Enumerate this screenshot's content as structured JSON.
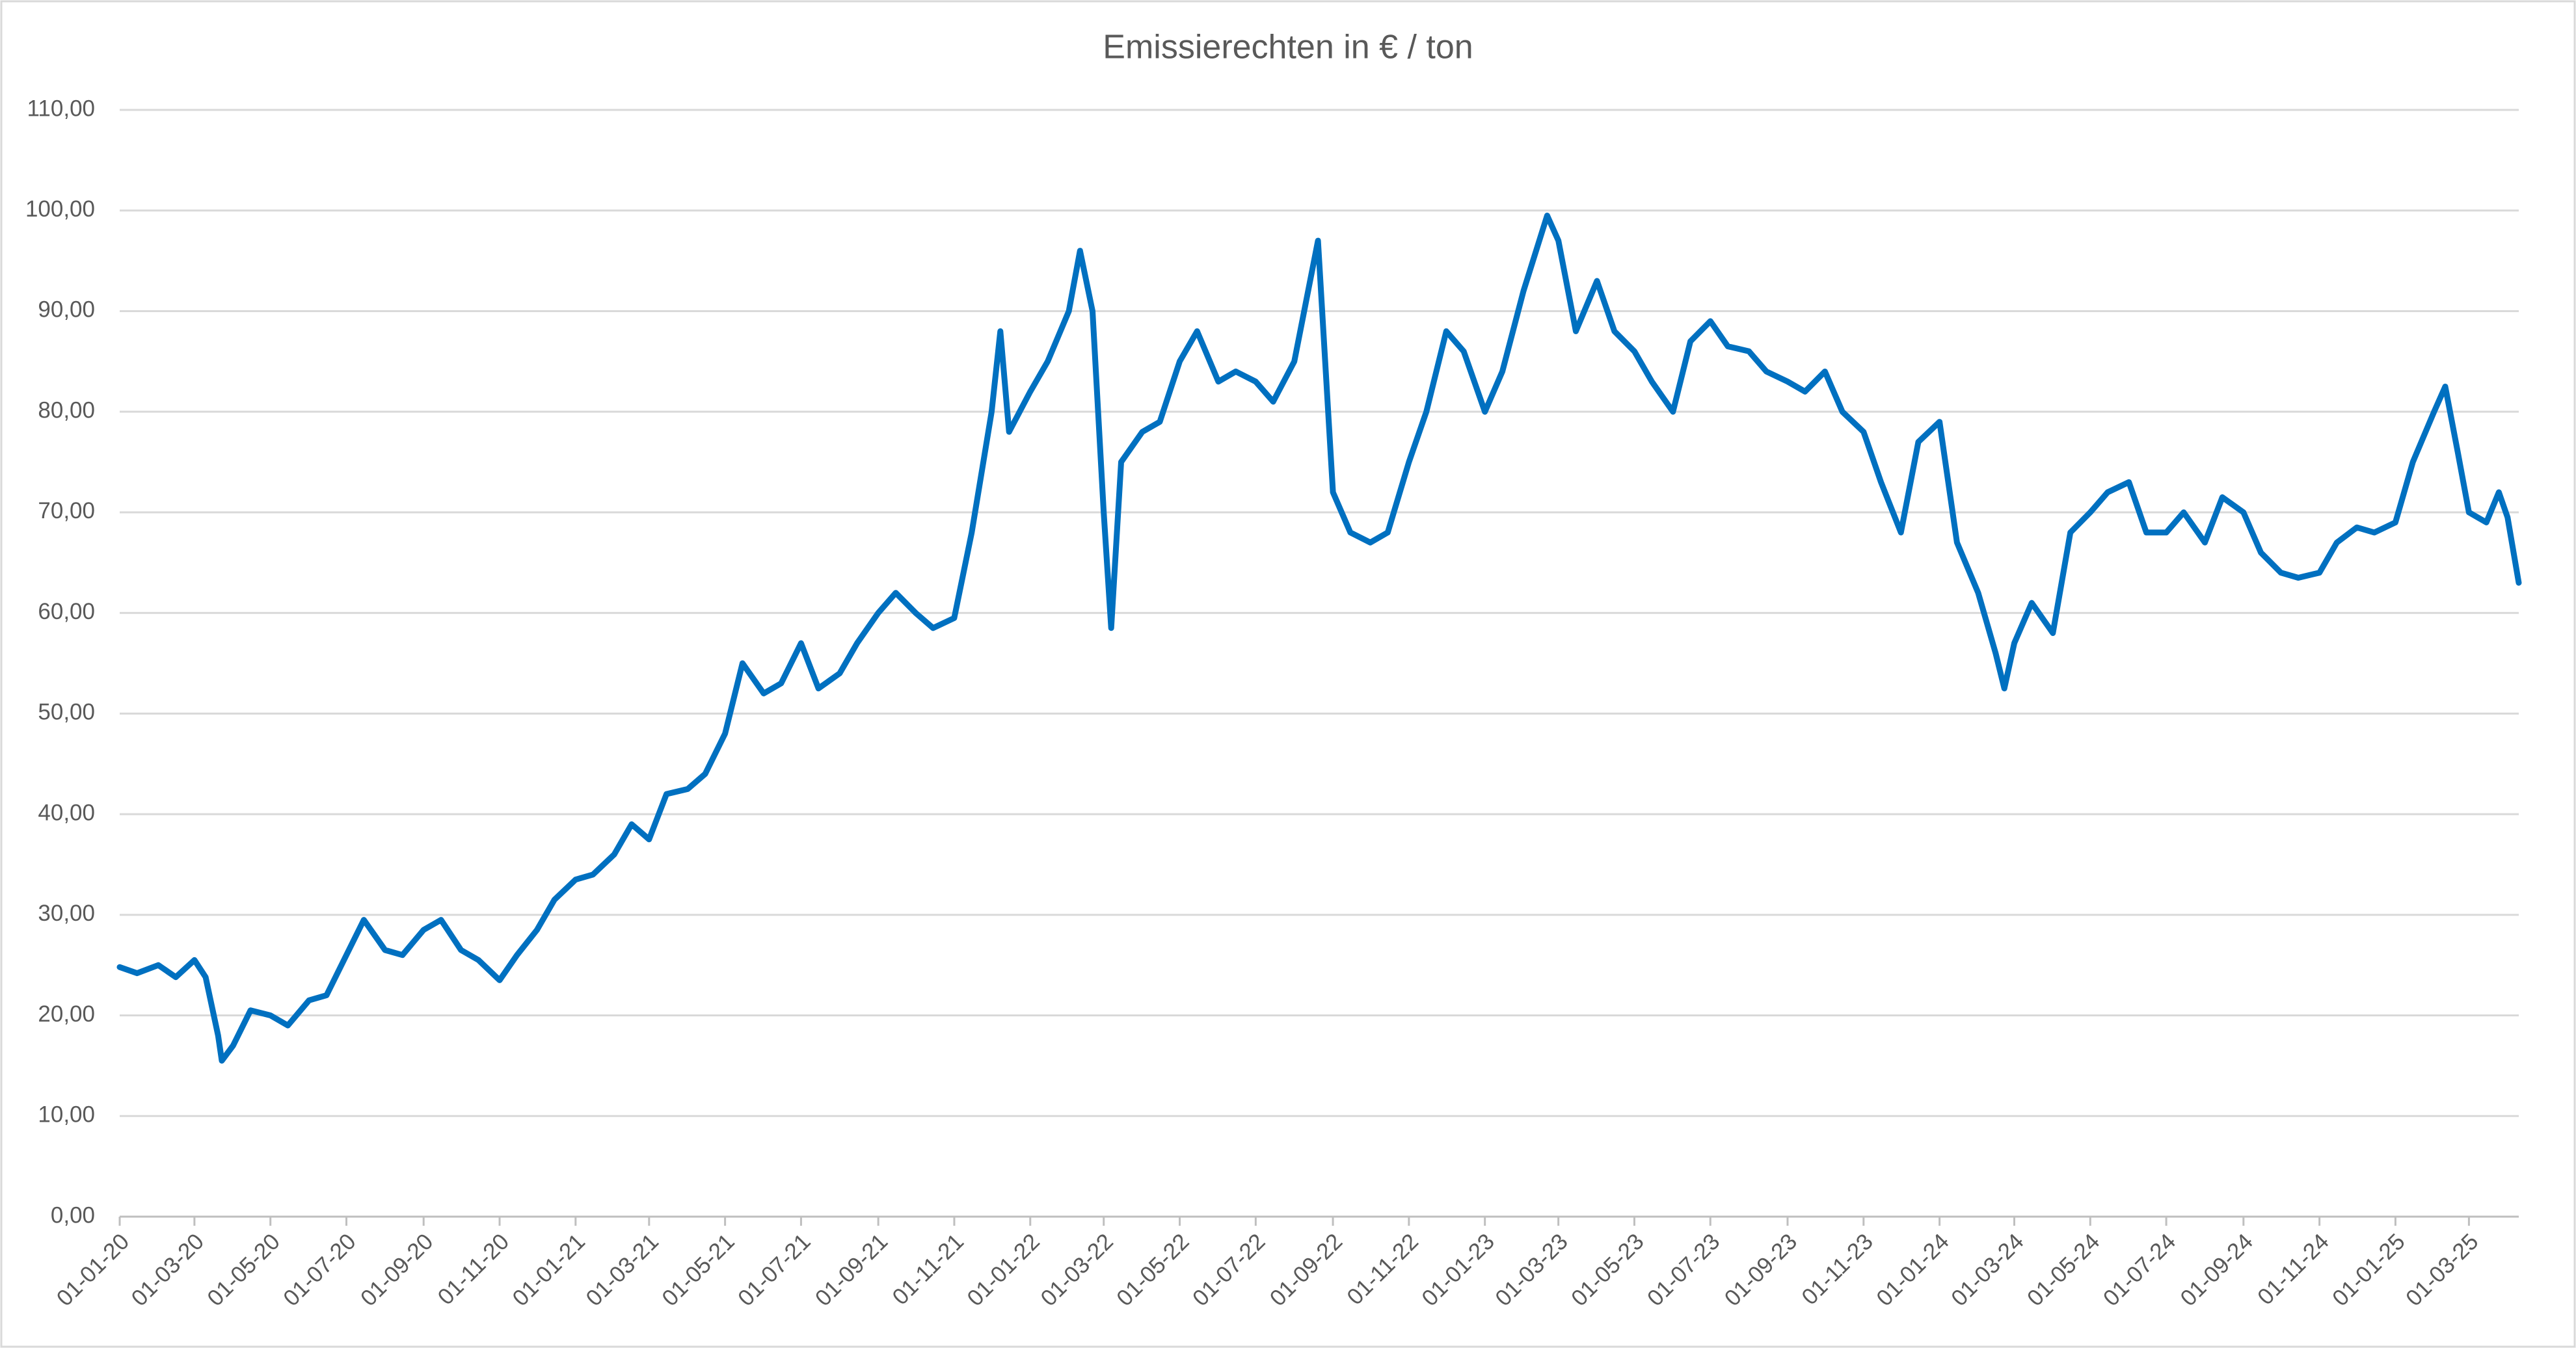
{
  "chart_data": {
    "type": "line",
    "title": "Emissierechten in € / ton",
    "x": [
      "01-01-20",
      "15-01-20",
      "01-02-20",
      "15-02-20",
      "01-03-20",
      "10-03-20",
      "20-03-20",
      "23-03-20",
      "01-04-20",
      "15-04-20",
      "01-05-20",
      "15-05-20",
      "01-06-20",
      "15-06-20",
      "01-07-20",
      "15-07-20",
      "01-08-20",
      "15-08-20",
      "01-09-20",
      "15-09-20",
      "01-10-20",
      "15-10-20",
      "01-11-20",
      "15-11-20",
      "01-12-20",
      "15-12-20",
      "01-01-21",
      "15-01-21",
      "01-02-21",
      "15-02-21",
      "01-03-21",
      "15-03-21",
      "01-04-21",
      "15-04-21",
      "01-05-21",
      "15-05-21",
      "01-06-21",
      "15-06-21",
      "01-07-21",
      "15-07-21",
      "01-08-21",
      "15-08-21",
      "01-09-21",
      "15-09-21",
      "01-10-21",
      "15-10-21",
      "01-11-21",
      "15-11-21",
      "01-12-21",
      "08-12-21",
      "15-12-21",
      "01-01-22",
      "15-01-22",
      "01-02-22",
      "10-02-22",
      "20-02-22",
      "01-03-22",
      "07-03-22",
      "15-03-22",
      "01-04-22",
      "15-04-22",
      "01-05-22",
      "15-05-22",
      "01-06-22",
      "15-06-22",
      "01-07-22",
      "15-07-22",
      "01-08-22",
      "20-08-22",
      "01-09-22",
      "15-09-22",
      "01-10-22",
      "15-10-22",
      "01-11-22",
      "15-11-22",
      "01-12-22",
      "15-12-22",
      "01-01-23",
      "15-01-23",
      "01-02-23",
      "20-02-23",
      "01-03-23",
      "15-03-23",
      "01-04-23",
      "15-04-23",
      "01-05-23",
      "15-05-23",
      "01-06-23",
      "15-06-23",
      "01-07-23",
      "15-07-23",
      "01-08-23",
      "15-08-23",
      "01-09-23",
      "15-09-23",
      "01-10-23",
      "15-10-23",
      "01-11-23",
      "15-11-23",
      "01-12-23",
      "15-12-23",
      "01-01-24",
      "15-01-24",
      "01-02-24",
      "15-02-24",
      "22-02-24",
      "01-03-24",
      "15-03-24",
      "01-04-24",
      "15-04-24",
      "01-05-24",
      "15-05-24",
      "01-06-24",
      "15-06-24",
      "01-07-24",
      "15-07-24",
      "01-08-24",
      "15-08-24",
      "01-09-24",
      "15-09-24",
      "01-10-24",
      "15-10-24",
      "01-11-24",
      "15-11-24",
      "01-12-24",
      "15-12-24",
      "01-01-25",
      "15-01-25",
      "01-02-25",
      "10-02-25",
      "20-02-25",
      "01-03-25",
      "15-03-25",
      "25-03-25",
      "01-04-25",
      "10-04-25"
    ],
    "series": [
      {
        "name": "Emissierechten",
        "color": "#0070c0",
        "values": [
          24.8,
          24.2,
          25.0,
          23.8,
          25.5,
          23.8,
          18.0,
          15.5,
          17.0,
          20.5,
          20.0,
          19.0,
          21.5,
          22.0,
          26.0,
          29.5,
          26.5,
          26.0,
          28.5,
          29.5,
          26.5,
          25.5,
          23.5,
          26.0,
          28.5,
          31.5,
          33.5,
          34.0,
          36.0,
          39.0,
          37.5,
          42.0,
          42.5,
          44.0,
          48.0,
          55.0,
          52.0,
          53.0,
          57.0,
          52.5,
          54.0,
          57.0,
          60.0,
          62.0,
          60.0,
          58.5,
          59.5,
          68.0,
          80.0,
          88.0,
          78.0,
          82.0,
          85.0,
          90.0,
          96.0,
          90.0,
          70.0,
          58.5,
          75.0,
          78.0,
          79.0,
          85.0,
          88.0,
          83.0,
          84.0,
          83.0,
          81.0,
          85.0,
          97.0,
          72.0,
          68.0,
          67.0,
          68.0,
          75.0,
          80.0,
          88.0,
          86.0,
          80.0,
          84.0,
          92.0,
          99.5,
          97.0,
          88.0,
          93.0,
          88.0,
          86.0,
          83.0,
          80.0,
          87.0,
          89.0,
          86.5,
          86.0,
          84.0,
          83.0,
          82.0,
          84.0,
          80.0,
          78.0,
          73.0,
          68.0,
          77.0,
          79.0,
          67.0,
          62.0,
          56.0,
          52.5,
          57.0,
          61.0,
          58.0,
          68.0,
          70.0,
          72.0,
          73.0,
          68.0,
          68.0,
          70.0,
          67.0,
          71.5,
          70.0,
          66.0,
          64.0,
          63.5,
          64.0,
          67.0,
          68.5,
          68.0,
          69.0,
          75.0,
          80.0,
          82.5,
          76.0,
          70.0,
          69.0,
          72.0,
          69.5,
          63.0
        ]
      }
    ],
    "xlim": [
      "01-01-20",
      "10-04-25"
    ],
    "xticks": [
      "01-01-20",
      "01-03-20",
      "01-05-20",
      "01-07-20",
      "01-09-20",
      "01-11-20",
      "01-01-21",
      "01-03-21",
      "01-05-21",
      "01-07-21",
      "01-09-21",
      "01-11-21",
      "01-01-22",
      "01-03-22",
      "01-05-22",
      "01-07-22",
      "01-09-22",
      "01-11-22",
      "01-01-23",
      "01-03-23",
      "01-05-23",
      "01-07-23",
      "01-09-23",
      "01-11-23",
      "01-01-24",
      "01-03-24",
      "01-05-24",
      "01-07-24",
      "01-09-24",
      "01-11-24",
      "01-01-25",
      "01-03-25"
    ],
    "ylim": [
      0,
      110
    ],
    "yticks": [
      {
        "value": 0,
        "label": "0,00"
      },
      {
        "value": 10,
        "label": "10,00"
      },
      {
        "value": 20,
        "label": "20,00"
      },
      {
        "value": 30,
        "label": "30,00"
      },
      {
        "value": 40,
        "label": "40,00"
      },
      {
        "value": 50,
        "label": "50,00"
      },
      {
        "value": 60,
        "label": "60,00"
      },
      {
        "value": 70,
        "label": "70,00"
      },
      {
        "value": 80,
        "label": "80,00"
      },
      {
        "value": 90,
        "label": "90,00"
      },
      {
        "value": 100,
        "label": "100,00"
      },
      {
        "value": 110,
        "label": "110,00"
      }
    ],
    "grid": true
  }
}
